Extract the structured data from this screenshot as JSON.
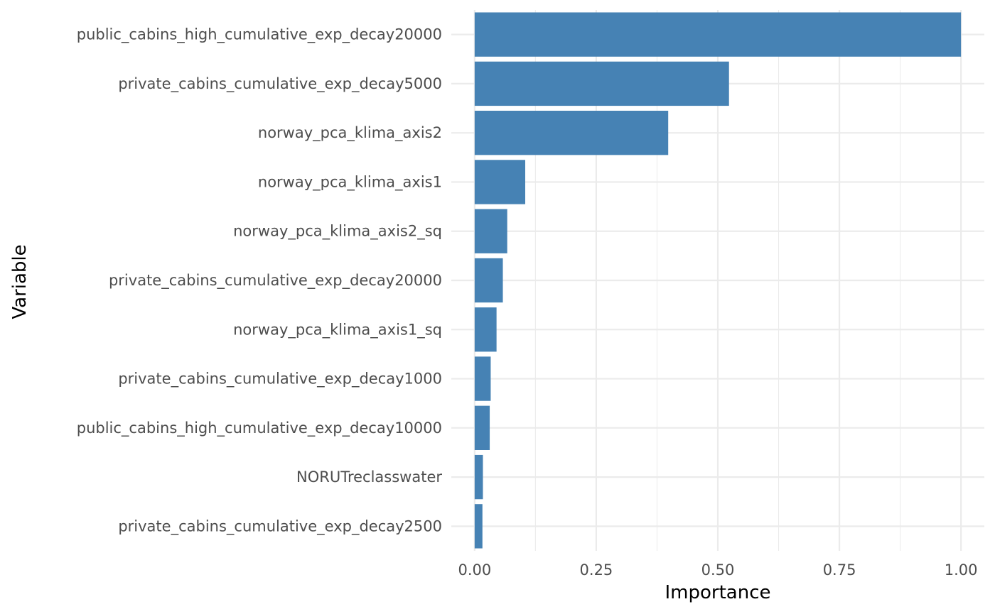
{
  "chart_data": {
    "type": "bar",
    "orientation": "horizontal",
    "xlabel": "Importance",
    "ylabel": "Variable",
    "xlim": [
      -0.048,
      1.048
    ],
    "xticks": [
      {
        "value": 0,
        "label": "0.00"
      },
      {
        "value": 0.25,
        "label": "0.25"
      },
      {
        "value": 0.5,
        "label": "0.50"
      },
      {
        "value": 0.75,
        "label": "0.75"
      },
      {
        "value": 1,
        "label": "1.00"
      }
    ],
    "grid": true,
    "bar_color": "#4682b4",
    "categories": [
      "public_cabins_high_cumulative_exp_decay20000",
      "private_cabins_cumulative_exp_decay5000",
      "norway_pca_klima_axis2",
      "norway_pca_klima_axis1",
      "norway_pca_klima_axis2_sq",
      "private_cabins_cumulative_exp_decay20000",
      "norway_pca_klima_axis1_sq",
      "private_cabins_cumulative_exp_decay1000",
      "public_cabins_high_cumulative_exp_decay10000",
      "NORUTreclasswater",
      "private_cabins_cumulative_exp_decay2500"
    ],
    "values": [
      1.0,
      0.523,
      0.398,
      0.104,
      0.067,
      0.058,
      0.045,
      0.033,
      0.031,
      0.017,
      0.016
    ]
  }
}
